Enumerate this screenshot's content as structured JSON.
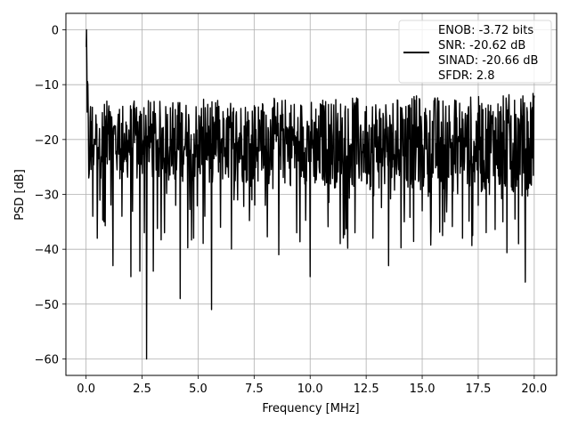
{
  "chart_data": {
    "type": "line",
    "title": "",
    "xlabel": "Frequency [MHz]",
    "ylabel": "PSD [dB]",
    "xlim": [
      -0.9,
      21.0
    ],
    "ylim": [
      -63.0,
      3.0
    ],
    "xticks": [
      0.0,
      2.5,
      5.0,
      7.5,
      10.0,
      12.5,
      15.0,
      17.5,
      20.0
    ],
    "xtick_labels": [
      "0.0",
      "2.5",
      "5.0",
      "7.5",
      "10.0",
      "12.5",
      "15.0",
      "17.5",
      "20.0"
    ],
    "yticks": [
      0,
      -10,
      -20,
      -30,
      -40,
      -50,
      -60
    ],
    "ytick_labels": [
      "0",
      "−10",
      "−20",
      "−30",
      "−40",
      "−50",
      "−60"
    ],
    "grid": true,
    "legend_position": "top-right",
    "legend_lines": [
      "ENOB: -3.72 bits",
      "SNR: -20.62 dB",
      "SINAD: -20.66 dB",
      "SFDR: 2.8"
    ],
    "series": [
      {
        "color": "#000000",
        "x": [
          0.0,
          0.02,
          0.05,
          0.08,
          0.12,
          0.2,
          0.3,
          0.4,
          0.5,
          0.6,
          0.8,
          1.0,
          1.2,
          1.4,
          1.6,
          1.8,
          2.0,
          2.2,
          2.4,
          2.6,
          2.7,
          2.8,
          3.0,
          3.2,
          3.5,
          3.8,
          4.0,
          4.2,
          4.5,
          4.8,
          5.0,
          5.3,
          5.6,
          5.8,
          6.0,
          6.3,
          6.6,
          7.0,
          7.4,
          7.8,
          8.0,
          8.3,
          8.6,
          9.0,
          9.4,
          9.8,
          10.0,
          10.4,
          10.8,
          11.2,
          11.5,
          11.8,
          12.0,
          12.4,
          12.8,
          13.2,
          13.5,
          13.8,
          14.2,
          14.6,
          15.0,
          15.4,
          15.8,
          16.0,
          16.4,
          16.8,
          17.2,
          17.5,
          17.8,
          18.2,
          18.6,
          19.0,
          19.3,
          19.6,
          19.8,
          20.0
        ],
        "y": [
          -3,
          0,
          -15,
          -10,
          -27,
          -14,
          -34,
          -20,
          -38,
          -18,
          -35,
          -15,
          -43,
          -20,
          -34,
          -24,
          -45,
          -18,
          -44,
          -37,
          -60,
          -24,
          -44,
          -20,
          -37,
          -20,
          -32,
          -49,
          -20,
          -38,
          -21,
          -34,
          -51,
          -23,
          -36,
          -25,
          -31,
          -23,
          -31,
          -22,
          -32,
          -23,
          -41,
          -24,
          -37,
          -27,
          -45,
          -25,
          -40,
          -27,
          -34,
          -23,
          -37,
          -26,
          -38,
          -23,
          -43,
          -24,
          -35,
          -23,
          -33,
          -46,
          -23,
          -35,
          -22,
          -38,
          -25,
          -32,
          -29,
          -24,
          -35,
          -24,
          -39,
          -46,
          -28,
          -12
        ]
      }
    ]
  }
}
